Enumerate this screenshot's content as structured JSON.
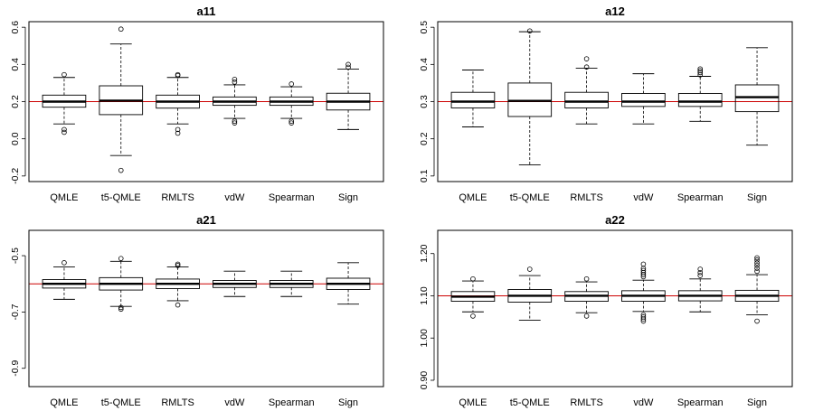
{
  "chart_data": [
    {
      "type": "boxplot",
      "title": "a11",
      "categories": [
        "QMLE",
        "t5-QMLE",
        "RMLTS",
        "vdW",
        "Spearman",
        "Sign"
      ],
      "ylim": [
        -0.23,
        0.63
      ],
      "yticks": [
        -0.2,
        0.0,
        0.2,
        0.4,
        0.6
      ],
      "ytick_labels": [
        "-0.2",
        "0.0",
        "0.2",
        "0.4",
        "0.6"
      ],
      "reference_line": 0.2,
      "reference_color": "#cc0000",
      "boxes": [
        {
          "whisker_low": 0.08,
          "q1": 0.17,
          "median": 0.2,
          "q3": 0.235,
          "whisker_high": 0.33,
          "outliers": [
            0.035,
            0.05,
            0.345
          ]
        },
        {
          "whisker_low": -0.09,
          "q1": 0.13,
          "median": 0.205,
          "q3": 0.285,
          "whisker_high": 0.51,
          "outliers": [
            -0.17,
            0.59
          ]
        },
        {
          "whisker_low": 0.08,
          "q1": 0.165,
          "median": 0.2,
          "q3": 0.235,
          "whisker_high": 0.33,
          "outliers": [
            0.03,
            0.05,
            0.34,
            0.345
          ]
        },
        {
          "whisker_low": 0.11,
          "q1": 0.18,
          "median": 0.2,
          "q3": 0.225,
          "whisker_high": 0.29,
          "outliers": [
            0.085,
            0.095,
            0.305,
            0.32
          ]
        },
        {
          "whisker_low": 0.11,
          "q1": 0.18,
          "median": 0.2,
          "q3": 0.225,
          "whisker_high": 0.28,
          "outliers": [
            0.085,
            0.095,
            0.295
          ]
        },
        {
          "whisker_low": 0.05,
          "q1": 0.155,
          "median": 0.2,
          "q3": 0.245,
          "whisker_high": 0.375,
          "outliers": [
            0.385,
            0.4
          ]
        }
      ]
    },
    {
      "type": "boxplot",
      "title": "a12",
      "categories": [
        "QMLE",
        "t5-QMLE",
        "RMLTS",
        "vdW",
        "Spearman",
        "Sign"
      ],
      "ylim": [
        0.085,
        0.515
      ],
      "yticks": [
        0.1,
        0.2,
        0.3,
        0.4,
        0.5
      ],
      "ytick_labels": [
        "0.1",
        "0.2",
        "0.3",
        "0.4",
        "0.5"
      ],
      "reference_line": 0.3,
      "reference_color": "#cc0000",
      "boxes": [
        {
          "whisker_low": 0.232,
          "q1": 0.283,
          "median": 0.3,
          "q3": 0.325,
          "whisker_high": 0.385,
          "outliers": []
        },
        {
          "whisker_low": 0.13,
          "q1": 0.26,
          "median": 0.302,
          "q3": 0.35,
          "whisker_high": 0.488,
          "outliers": [
            0.49
          ]
        },
        {
          "whisker_low": 0.24,
          "q1": 0.283,
          "median": 0.3,
          "q3": 0.325,
          "whisker_high": 0.39,
          "outliers": [
            0.393,
            0.415
          ]
        },
        {
          "whisker_low": 0.24,
          "q1": 0.287,
          "median": 0.3,
          "q3": 0.322,
          "whisker_high": 0.375,
          "outliers": []
        },
        {
          "whisker_low": 0.247,
          "q1": 0.287,
          "median": 0.3,
          "q3": 0.322,
          "whisker_high": 0.368,
          "outliers": [
            0.372,
            0.378,
            0.383,
            0.388
          ]
        },
        {
          "whisker_low": 0.183,
          "q1": 0.273,
          "median": 0.312,
          "q3": 0.345,
          "whisker_high": 0.445,
          "outliers": []
        }
      ]
    },
    {
      "type": "boxplot",
      "title": "a21",
      "categories": [
        "QMLE",
        "t5-QMLE",
        "RMLTS",
        "vdW",
        "Spearman",
        "Sign"
      ],
      "ylim": [
        -0.965,
        -0.41
      ],
      "yticks": [
        -0.9,
        -0.7,
        -0.5
      ],
      "ytick_labels": [
        "-0.9",
        "-0.7",
        "-0.5"
      ],
      "reference_line": -0.6,
      "reference_color": "#cc0000",
      "boxes": [
        {
          "whisker_low": -0.655,
          "q1": -0.615,
          "median": -0.6,
          "q3": -0.585,
          "whisker_high": -0.54,
          "outliers": [
            -0.525
          ]
        },
        {
          "whisker_low": -0.68,
          "q1": -0.622,
          "median": -0.6,
          "q3": -0.578,
          "whisker_high": -0.52,
          "outliers": [
            -0.51,
            -0.684,
            -0.69
          ]
        },
        {
          "whisker_low": -0.66,
          "q1": -0.617,
          "median": -0.6,
          "q3": -0.583,
          "whisker_high": -0.54,
          "outliers": [
            -0.53,
            -0.535,
            -0.675
          ]
        },
        {
          "whisker_low": -0.645,
          "q1": -0.613,
          "median": -0.6,
          "q3": -0.588,
          "whisker_high": -0.555,
          "outliers": []
        },
        {
          "whisker_low": -0.645,
          "q1": -0.613,
          "median": -0.6,
          "q3": -0.588,
          "whisker_high": -0.555,
          "outliers": []
        },
        {
          "whisker_low": -0.672,
          "q1": -0.62,
          "median": -0.6,
          "q3": -0.58,
          "whisker_high": -0.525,
          "outliers": []
        }
      ]
    },
    {
      "type": "boxplot",
      "title": "a22",
      "categories": [
        "QMLE",
        "t5-QMLE",
        "RMLTS",
        "vdW",
        "Spearman",
        "Sign"
      ],
      "ylim": [
        0.885,
        1.255
      ],
      "yticks": [
        0.9,
        1.0,
        1.1,
        1.2
      ],
      "ytick_labels": [
        "0.90",
        "1.00",
        "1.10",
        "1.20"
      ],
      "reference_line": 1.1,
      "reference_color": "#cc0000",
      "boxes": [
        {
          "whisker_low": 1.062,
          "q1": 1.087,
          "median": 1.098,
          "q3": 1.11,
          "whisker_high": 1.135,
          "outliers": [
            1.052,
            1.14
          ]
        },
        {
          "whisker_low": 1.042,
          "q1": 1.085,
          "median": 1.1,
          "q3": 1.115,
          "whisker_high": 1.148,
          "outliers": [
            1.163
          ]
        },
        {
          "whisker_low": 1.06,
          "q1": 1.087,
          "median": 1.1,
          "q3": 1.11,
          "whisker_high": 1.133,
          "outliers": [
            1.052,
            1.14
          ]
        },
        {
          "whisker_low": 1.063,
          "q1": 1.087,
          "median": 1.1,
          "q3": 1.112,
          "whisker_high": 1.137,
          "outliers": [
            1.04,
            1.045,
            1.05,
            1.055,
            1.145,
            1.15,
            1.155,
            1.16,
            1.165,
            1.175
          ]
        },
        {
          "whisker_low": 1.062,
          "q1": 1.088,
          "median": 1.1,
          "q3": 1.112,
          "whisker_high": 1.14,
          "outliers": [
            1.148,
            1.155,
            1.163
          ]
        },
        {
          "whisker_low": 1.055,
          "q1": 1.087,
          "median": 1.1,
          "q3": 1.113,
          "whisker_high": 1.15,
          "outliers": [
            1.04,
            1.158,
            1.165,
            1.172,
            1.178,
            1.185,
            1.19
          ]
        }
      ]
    }
  ]
}
